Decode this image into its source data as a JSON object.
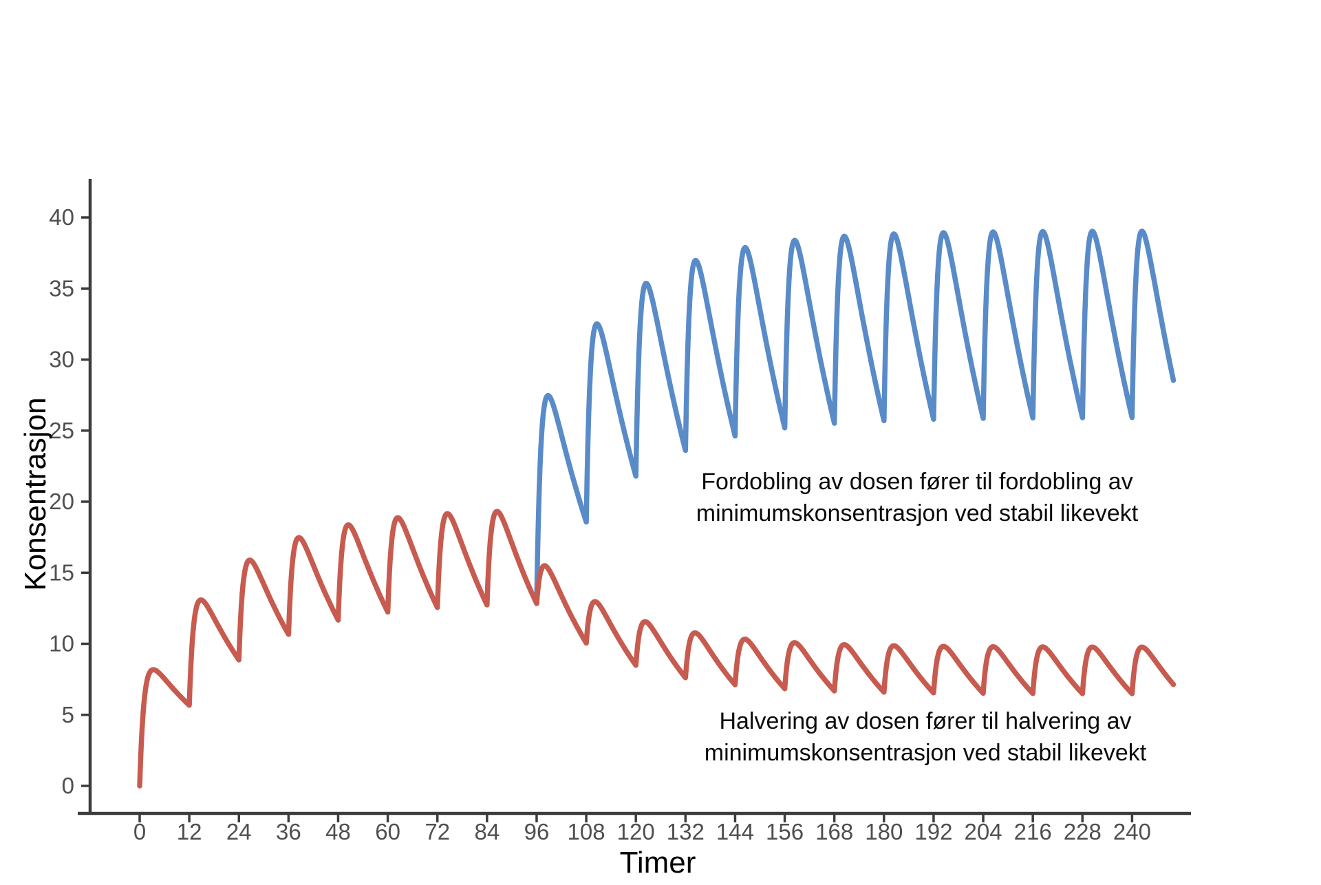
{
  "figure": {
    "background_color": "#ffffff",
    "axis_line_color": "#3c3c3c",
    "tick_label_color": "#4f4f4f",
    "title_color": "#000000"
  },
  "chart_data": {
    "type": "line",
    "title": "",
    "xlabel": "Timer",
    "ylabel": "Konsentrasjon",
    "x_ticks": [
      0,
      12,
      24,
      36,
      48,
      60,
      72,
      84,
      96,
      108,
      120,
      132,
      144,
      156,
      168,
      180,
      192,
      204,
      216,
      228,
      240
    ],
    "y_ticks": [
      0,
      5,
      10,
      15,
      20,
      25,
      30,
      35,
      40
    ],
    "xlim": [
      0,
      250
    ],
    "ylim": [
      0,
      40
    ],
    "grid": false,
    "legend": "none",
    "dose_interval_hours": 12,
    "model": {
      "description": "one-compartment repeated oral dosing, superposition of amount*scale*(exp(-ke*dt)-exp(-ka*dt))",
      "ka": 0.95,
      "ke": 0.048,
      "scale": 10.1,
      "t_switch": 96,
      "t_end": 250,
      "sample_step_hours": 0.2
    },
    "series": [
      {
        "name": "fordobling",
        "color": "#5A8BC9",
        "draw_from": 96,
        "doses": [
          {
            "start": 0,
            "end": 84,
            "amount": 1
          },
          {
            "start": 96,
            "end": 240,
            "amount": 2
          }
        ],
        "approx_peaks": [
          27.7,
          32.6,
          35.3,
          37.1,
          38.1,
          38.7,
          39.1,
          39.3,
          39.4,
          39.5,
          39.5,
          39.5,
          39.5
        ],
        "approx_troughs": [
          18.3,
          21.5,
          23.4,
          24.5,
          25.1,
          25.4,
          25.6,
          25.7,
          25.8,
          25.8,
          25.8,
          25.8
        ],
        "end_value": 28.6
      },
      {
        "name": "halvering",
        "color": "#C75B4F",
        "draw_from": 0,
        "doses": [
          {
            "start": 0,
            "end": 84,
            "amount": 1
          },
          {
            "start": 96,
            "end": 240,
            "amount": 0.5
          }
        ],
        "approx_peaks_initial": [
          8.0,
          13.0,
          15.8,
          17.5,
          18.4,
          19.0,
          19.3,
          19.5
        ],
        "approx_troughs_initial": [
          5.3,
          8.6,
          10.5,
          11.7,
          12.3,
          12.6,
          12.75,
          12.8
        ],
        "approx_peaks_after_halving": [
          15.7,
          13.3,
          12.0,
          11.2,
          10.7,
          10.4,
          10.2,
          10.1,
          10.0,
          10.0,
          9.9,
          9.9,
          9.9
        ],
        "approx_troughs_after_halving": [
          10.2,
          8.7,
          7.9,
          7.4,
          7.1,
          6.9,
          6.8,
          6.7,
          6.7,
          6.6,
          6.6,
          6.6
        ],
        "end_value": 7.2
      }
    ],
    "annotations": [
      {
        "id": "fordobling-note",
        "lines": [
          "Fordobling av dosen fører til fordobling av",
          "minimumskonsentrasjon ved stabil likevekt"
        ]
      },
      {
        "id": "halvering-note",
        "lines": [
          "Halvering av dosen fører til halvering av",
          "minimumskonsentrasjon ved stabil likevekt"
        ]
      }
    ]
  }
}
